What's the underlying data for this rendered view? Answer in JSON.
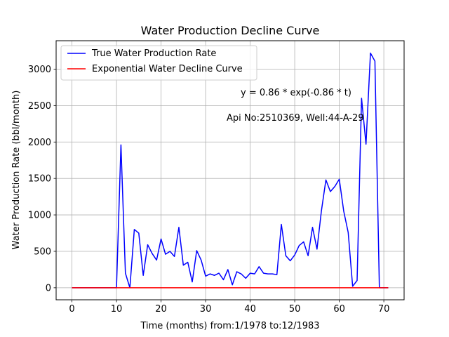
{
  "chart_data": {
    "type": "line",
    "title": "Water Production Decline Curve",
    "xlabel": "Time (months) from:1/1978 to:12/1983",
    "ylabel": "Water Production Rate (bbl/month)",
    "xlim": [
      -3.55,
      74.55
    ],
    "ylim": [
      -165,
      3390
    ],
    "grid": true,
    "legend_position": "upper left",
    "x_ticks": [
      0,
      10,
      20,
      30,
      40,
      50,
      60,
      70
    ],
    "y_ticks": [
      0,
      500,
      1000,
      1500,
      2000,
      2500,
      3000
    ],
    "annotations": [
      {
        "text": "y = 0.86 * exp(-0.86 * t)",
        "x": 38,
        "y": 2640
      },
      {
        "text": "Api No:2510369, Well:44-A-29",
        "x": 35,
        "y": 2290
      }
    ],
    "series": [
      {
        "name": "True Water Production Rate",
        "color": "#0000ff",
        "x": [
          0,
          1,
          2,
          3,
          4,
          5,
          6,
          7,
          8,
          9,
          10,
          11,
          12,
          13,
          14,
          15,
          16,
          17,
          18,
          19,
          20,
          21,
          22,
          23,
          24,
          25,
          26,
          27,
          28,
          29,
          30,
          31,
          32,
          33,
          34,
          35,
          36,
          37,
          38,
          39,
          40,
          41,
          42,
          43,
          44,
          45,
          46,
          47,
          48,
          49,
          50,
          51,
          52,
          53,
          54,
          55,
          56,
          57,
          58,
          59,
          60,
          61,
          62,
          63,
          64,
          65,
          66,
          67,
          68,
          69,
          70,
          71
        ],
        "y": [
          0,
          0,
          0,
          0,
          0,
          0,
          0,
          0,
          0,
          0,
          0,
          1960,
          200,
          0,
          800,
          750,
          170,
          590,
          470,
          380,
          670,
          460,
          500,
          430,
          830,
          310,
          350,
          80,
          510,
          380,
          160,
          190,
          170,
          200,
          110,
          250,
          40,
          220,
          190,
          130,
          200,
          190,
          290,
          200,
          190,
          190,
          180,
          870,
          440,
          370,
          450,
          580,
          630,
          440,
          830,
          530,
          1060,
          1480,
          1320,
          1390,
          1490,
          1050,
          760,
          20,
          100,
          2600,
          1970,
          3220,
          3110,
          0,
          0,
          0
        ]
      },
      {
        "name": "Exponential Water Decline Curve",
        "color": "#ff0000",
        "x": [
          0,
          71
        ],
        "y": [
          0,
          0
        ]
      }
    ]
  }
}
